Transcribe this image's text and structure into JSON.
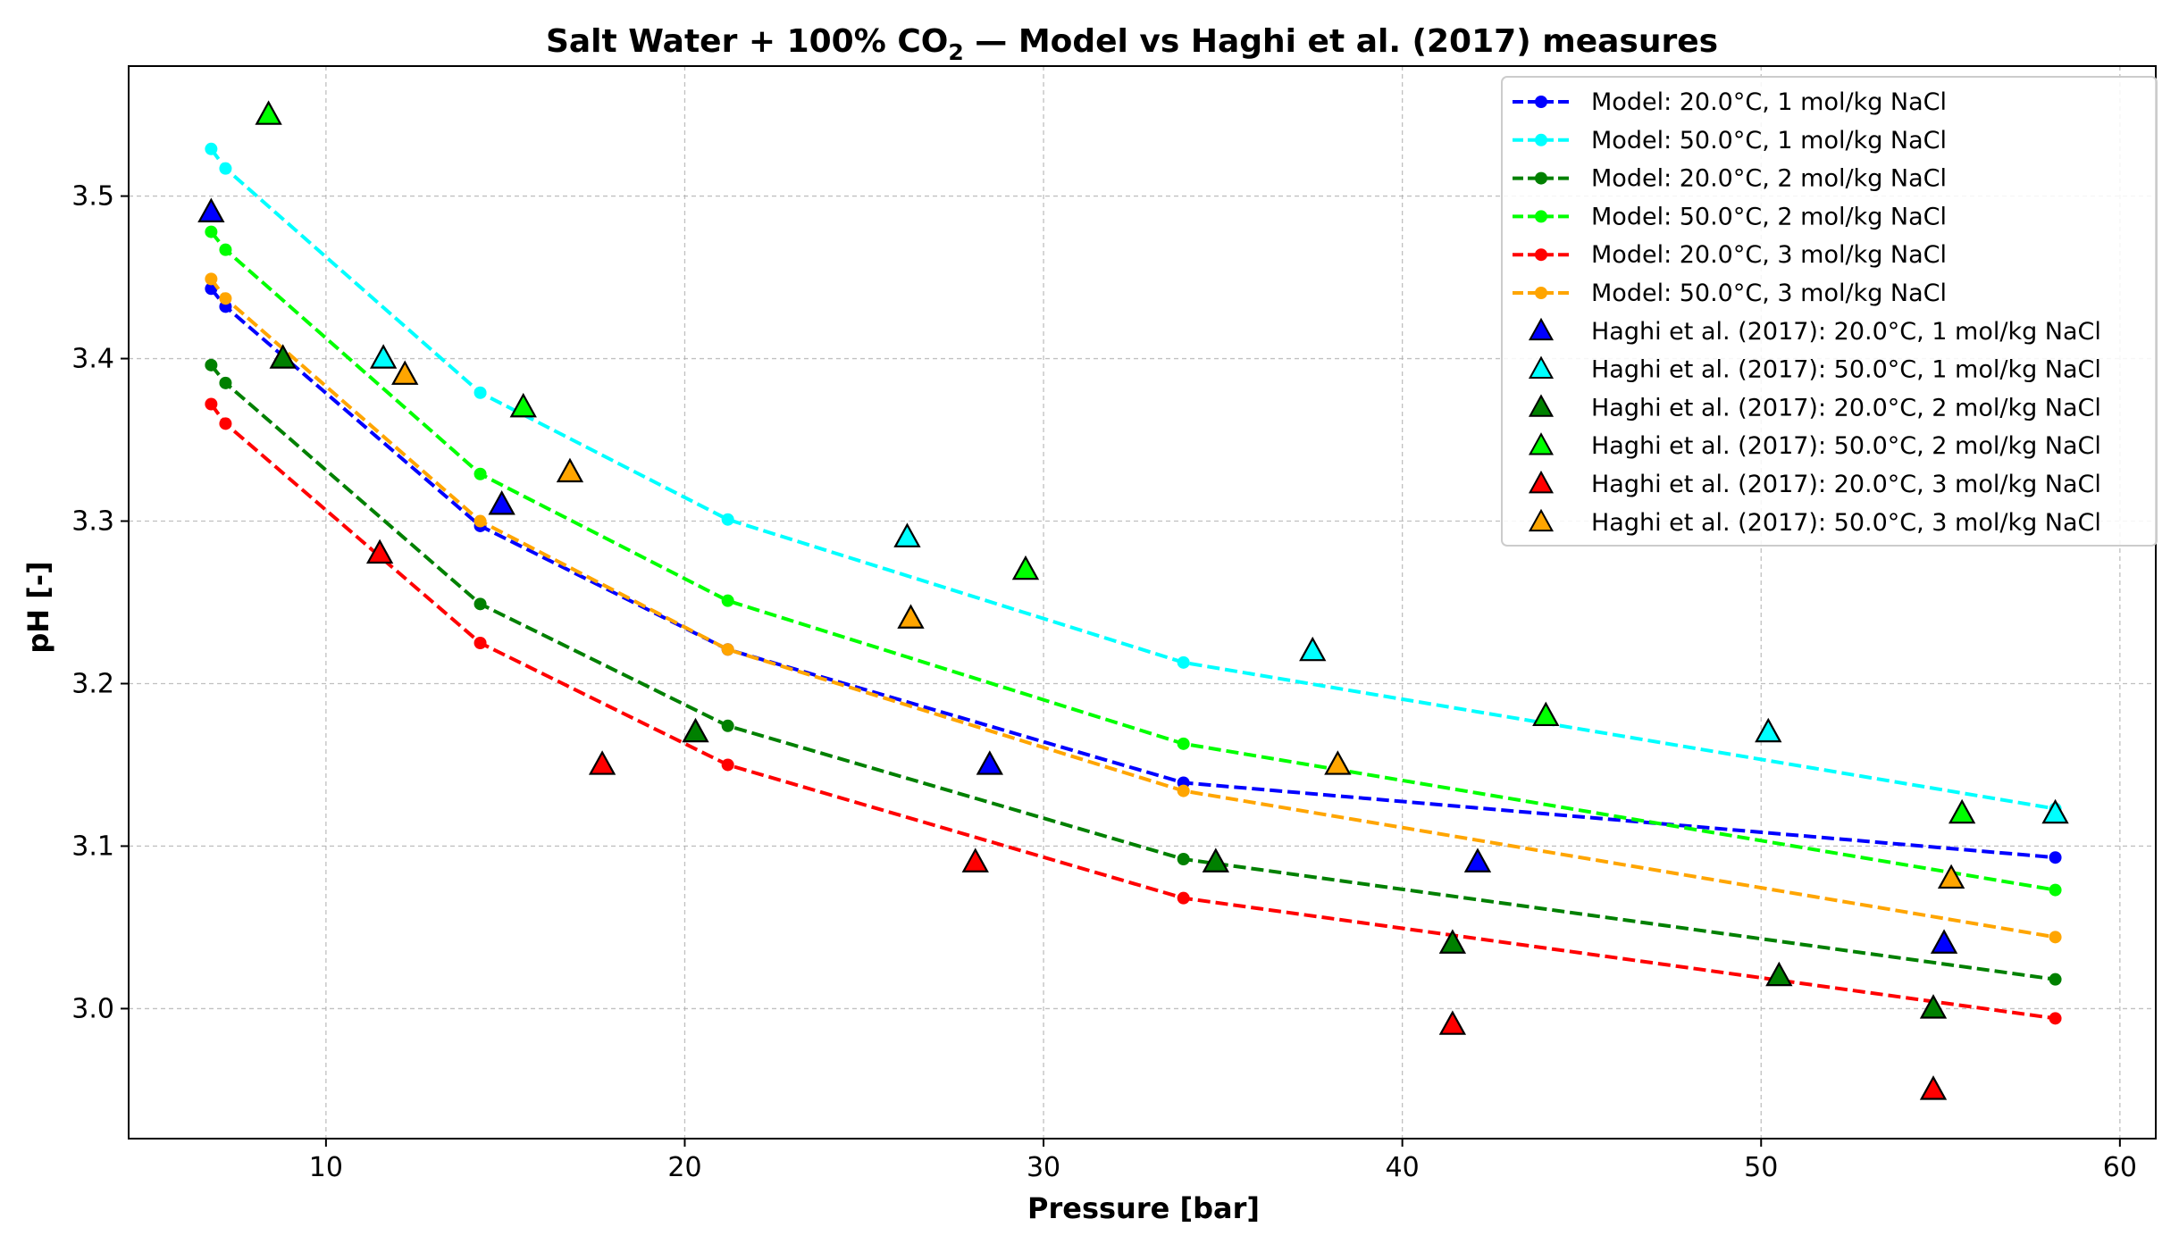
{
  "chart_data": {
    "type": "scatter",
    "title_parts": [
      "Salt Water + 100% CO",
      "2",
      " — Model vs Haghi et al. (2017) measures"
    ],
    "xlabel": "Pressure [bar]",
    "ylabel": "pH [-]",
    "xlim": [
      4.5,
      61
    ],
    "ylim": [
      2.92,
      3.58
    ],
    "xticks": [
      10,
      20,
      30,
      40,
      50,
      60
    ],
    "yticks": [
      3.0,
      3.1,
      3.2,
      3.3,
      3.4,
      3.5
    ],
    "grid": true,
    "legend_placement": "top-right",
    "series": [
      {
        "name": "Model: 20.0°C, 1 mol/kg NaCl",
        "kind": "model",
        "color": "#0000ff",
        "x": [
          6.8,
          7.2,
          14.3,
          21.2,
          33.9,
          58.2
        ],
        "y": [
          3.443,
          3.432,
          3.297,
          3.221,
          3.139,
          3.093
        ]
      },
      {
        "name": "Model: 50.0°C, 1 mol/kg NaCl",
        "kind": "model",
        "color": "#00ffff",
        "x": [
          6.8,
          7.2,
          14.3,
          21.2,
          33.9,
          58.2
        ],
        "y": [
          3.529,
          3.517,
          3.379,
          3.301,
          3.213,
          3.123
        ]
      },
      {
        "name": "Model: 20.0°C, 2 mol/kg NaCl",
        "kind": "model",
        "color": "#008000",
        "x": [
          6.8,
          7.2,
          14.3,
          21.2,
          33.9,
          58.2
        ],
        "y": [
          3.396,
          3.385,
          3.249,
          3.174,
          3.092,
          3.018
        ]
      },
      {
        "name": "Model: 50.0°C, 2 mol/kg NaCl",
        "kind": "model",
        "color": "#00ff00",
        "x": [
          6.8,
          7.2,
          14.3,
          21.2,
          33.9,
          58.2
        ],
        "y": [
          3.478,
          3.467,
          3.329,
          3.251,
          3.163,
          3.073
        ]
      },
      {
        "name": "Model: 20.0°C, 3 mol/kg NaCl",
        "kind": "model",
        "color": "#ff0000",
        "x": [
          6.8,
          7.2,
          14.3,
          21.2,
          33.9,
          58.2
        ],
        "y": [
          3.372,
          3.36,
          3.225,
          3.15,
          3.068,
          2.994
        ]
      },
      {
        "name": "Model: 50.0°C, 3 mol/kg NaCl",
        "kind": "model",
        "color": "#ffa500",
        "x": [
          6.8,
          7.2,
          14.3,
          21.2,
          33.9,
          58.2
        ],
        "y": [
          3.449,
          3.437,
          3.3,
          3.221,
          3.134,
          3.044
        ]
      },
      {
        "name": "Haghi et al. (2017): 20.0°C, 1 mol/kg NaCl",
        "kind": "measure",
        "color": "#0000ff",
        "x": [
          6.8,
          14.9,
          28.5,
          42.1,
          55.1
        ],
        "y": [
          3.49,
          3.31,
          3.15,
          3.09,
          3.04
        ]
      },
      {
        "name": "Haghi et al. (2017): 50.0°C, 1 mol/kg NaCl",
        "kind": "measure",
        "color": "#00ffff",
        "x": [
          11.6,
          26.2,
          37.5,
          50.2,
          58.2
        ],
        "y": [
          3.4,
          3.29,
          3.22,
          3.17,
          3.12
        ]
      },
      {
        "name": "Haghi et al. (2017): 20.0°C, 2 mol/kg NaCl",
        "kind": "measure",
        "color": "#008000",
        "x": [
          8.8,
          20.3,
          34.8,
          41.4,
          50.5,
          54.8
        ],
        "y": [
          3.4,
          3.17,
          3.09,
          3.04,
          3.02,
          3.0
        ]
      },
      {
        "name": "Haghi et al. (2017): 50.0°C, 2 mol/kg NaCl",
        "kind": "measure",
        "color": "#00ff00",
        "x": [
          8.4,
          15.5,
          29.5,
          44.0,
          55.6
        ],
        "y": [
          3.55,
          3.37,
          3.27,
          3.18,
          3.12
        ]
      },
      {
        "name": "Haghi et al. (2017): 20.0°C, 3 mol/kg NaCl",
        "kind": "measure",
        "color": "#ff0000",
        "x": [
          11.5,
          17.7,
          28.1,
          41.4,
          54.8
        ],
        "y": [
          3.28,
          3.15,
          3.09,
          2.99,
          2.95
        ]
      },
      {
        "name": "Haghi et al. (2017): 50.0°C, 3 mol/kg NaCl",
        "kind": "measure",
        "color": "#ffa500",
        "x": [
          12.2,
          16.8,
          26.3,
          38.2,
          55.3
        ],
        "y": [
          3.39,
          3.33,
          3.24,
          3.15,
          3.08
        ]
      }
    ]
  }
}
